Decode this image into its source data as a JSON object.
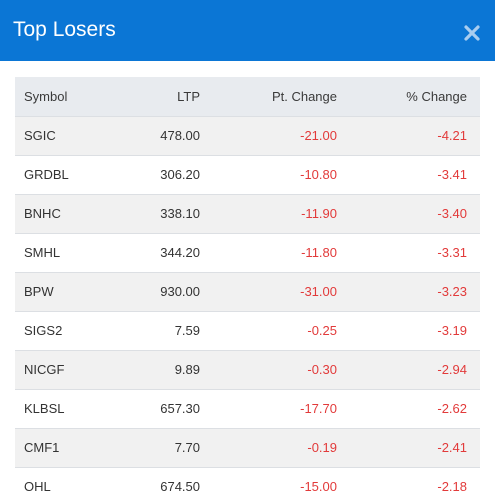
{
  "header": {
    "title": "Top Losers",
    "close_icon": "close-icon"
  },
  "colors": {
    "header_bg": "#0b76d5",
    "negative": "#e23a3a",
    "row_alt": "#f1f1f1",
    "thead_bg": "#e8ebef"
  },
  "table": {
    "columns": [
      "Symbol",
      "LTP",
      "Pt. Change",
      "% Change"
    ],
    "rows": [
      {
        "symbol": "SGIC",
        "ltp": "478.00",
        "pt_change": "-21.00",
        "pct_change": "-4.21"
      },
      {
        "symbol": "GRDBL",
        "ltp": "306.20",
        "pt_change": "-10.80",
        "pct_change": "-3.41"
      },
      {
        "symbol": "BNHC",
        "ltp": "338.10",
        "pt_change": "-11.90",
        "pct_change": "-3.40"
      },
      {
        "symbol": "SMHL",
        "ltp": "344.20",
        "pt_change": "-11.80",
        "pct_change": "-3.31"
      },
      {
        "symbol": "BPW",
        "ltp": "930.00",
        "pt_change": "-31.00",
        "pct_change": "-3.23"
      },
      {
        "symbol": "SIGS2",
        "ltp": "7.59",
        "pt_change": "-0.25",
        "pct_change": "-3.19"
      },
      {
        "symbol": "NICGF",
        "ltp": "9.89",
        "pt_change": "-0.30",
        "pct_change": "-2.94"
      },
      {
        "symbol": "KLBSL",
        "ltp": "657.30",
        "pt_change": "-17.70",
        "pct_change": "-2.62"
      },
      {
        "symbol": "CMF1",
        "ltp": "7.70",
        "pt_change": "-0.19",
        "pct_change": "-2.41"
      },
      {
        "symbol": "OHL",
        "ltp": "674.50",
        "pt_change": "-15.00",
        "pct_change": "-2.18"
      }
    ]
  }
}
